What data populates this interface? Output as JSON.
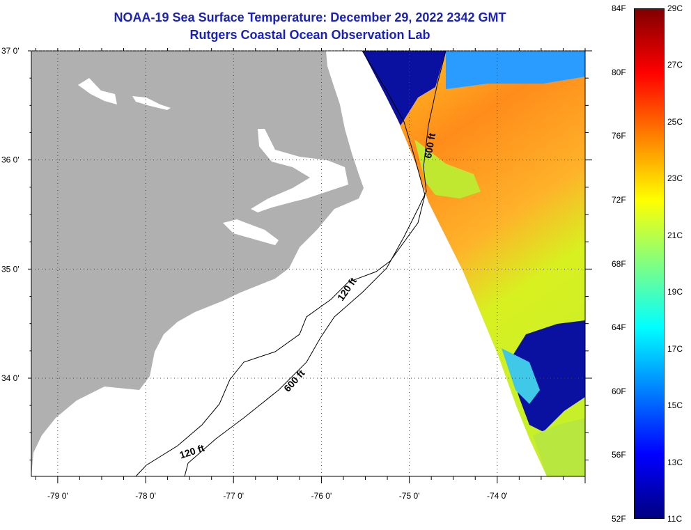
{
  "title": "NOAA-19 Sea Surface Temperature:  December 29, 2022 2342 GMT",
  "subtitle": "Rutgers Coastal Ocean Observation Lab",
  "axes": {
    "lon_ticks": [
      "-79 0'",
      "-78 0'",
      "-77 0'",
      "-76 0'",
      "-75 0'",
      "-74 0'"
    ],
    "lat_ticks": [
      "37 0'",
      "36 0'",
      "35 0'",
      "34 0'"
    ]
  },
  "map_extent": {
    "lon": [
      -79.3,
      -73.0
    ],
    "lat": [
      33.1,
      37.0
    ]
  },
  "contours": {
    "c120_label": "120 ft",
    "c600_label": "600 ft"
  },
  "colorbar": {
    "f_labels": [
      "84F",
      "80F",
      "76F",
      "72F",
      "68F",
      "64F",
      "60F",
      "56F",
      "52F"
    ],
    "c_labels": [
      "29C",
      "27C",
      "25C",
      "23C",
      "21C",
      "19C",
      "17C",
      "15C",
      "13C",
      "11C"
    ],
    "range_c": [
      11,
      29
    ]
  },
  "colors": {
    "land": "#b0b0b0",
    "title": "#1a22b8",
    "warm": "#ff8c1a",
    "cold": "#0a10a0"
  }
}
